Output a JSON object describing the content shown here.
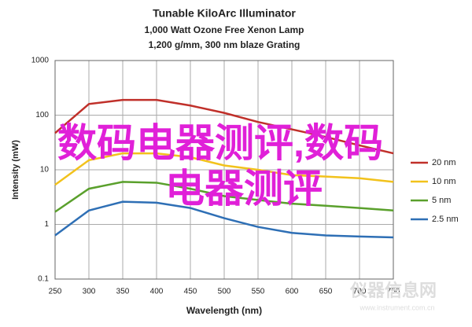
{
  "chart_data": {
    "type": "line",
    "title": "Tunable KiloArc Illuminator",
    "subtitles": [
      "1,000 Watt Ozone Free Xenon Lamp",
      "1,200 g/mm, 300 nm blaze Grating"
    ],
    "x_label": "Wavelength (nm)",
    "y_label": "Intensity (mW)",
    "x": [
      250,
      300,
      350,
      400,
      450,
      500,
      550,
      600,
      650,
      700,
      750
    ],
    "series": [
      {
        "name": "20 nm",
        "color": "#c0302a",
        "values": [
          47,
          160,
          190,
          190,
          150,
          110,
          75,
          55,
          40,
          28,
          20
        ]
      },
      {
        "name": "10 nm",
        "color": "#f2c21c",
        "values": [
          5.3,
          15,
          20,
          20,
          17,
          12,
          10,
          8,
          7.5,
          7,
          6
        ]
      },
      {
        "name": "5 nm",
        "color": "#5aa02c",
        "values": [
          1.7,
          4.5,
          6,
          5.8,
          4.5,
          3.3,
          2.8,
          2.4,
          2.2,
          2,
          1.8
        ]
      },
      {
        "name": "2.5 nm",
        "color": "#2e6fb5",
        "values": [
          0.63,
          1.8,
          2.6,
          2.5,
          2,
          1.3,
          0.9,
          0.7,
          0.63,
          0.6,
          0.58
        ]
      }
    ],
    "xlim": [
      250,
      750
    ],
    "xticks": [
      250,
      300,
      350,
      400,
      450,
      500,
      550,
      600,
      650,
      700,
      750
    ],
    "ylim": [
      0.1,
      1000
    ],
    "yticks": [
      0.1,
      1,
      10,
      100,
      1000
    ],
    "log_y": true,
    "grid": true,
    "legend": "right",
    "overlay_text": [
      "数码电器测评,数码",
      "电器测评"
    ],
    "watermark": [
      "仪器信息网",
      "www.instrument.com.cn"
    ]
  }
}
